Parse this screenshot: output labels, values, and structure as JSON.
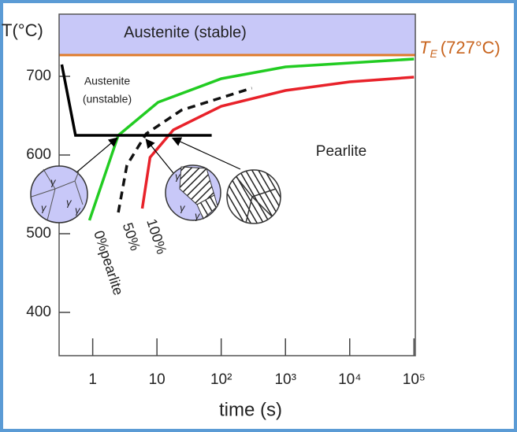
{
  "chart_data": {
    "type": "line",
    "y_label": "T(°C)",
    "x_label": "time (s)",
    "log_x": true,
    "xlim": [
      0.3,
      105000
    ],
    "ylim": [
      345,
      779
    ],
    "xticks": [
      1,
      10,
      {
        "value": 100,
        "label": "10²"
      },
      {
        "value": 1000,
        "label": "10³"
      },
      {
        "value": 10000,
        "label": "10⁴"
      },
      {
        "value": 100000,
        "label": "10⁵"
      }
    ],
    "yticks": [
      400,
      500,
      600,
      700
    ],
    "te_value": 727,
    "te_label": {
      "symbol": "T",
      "subscript": "E",
      "text": "(727°C)"
    },
    "region_stable": "Austenite (stable)",
    "region_unstable": [
      "Austenite",
      "(unstable)"
    ],
    "region_pearlite": "Pearlite",
    "grain_symbol": "γ",
    "series": [
      {
        "name": "0%pearlite",
        "color": "#22cc22",
        "dash": false,
        "x": [
          0.89,
          2.5,
          10.4,
          100,
          1000,
          100000
        ],
        "values": [
          517,
          625,
          667,
          697,
          712,
          722
        ]
      },
      {
        "name": "50%",
        "color": "#111111",
        "dash": true,
        "x": [
          2.5,
          3.4,
          6.8,
          24,
          300
        ],
        "values": [
          527,
          587,
          627,
          657,
          685
        ]
      },
      {
        "name": "100%",
        "color": "#e8222a",
        "dash": false,
        "x": [
          5.9,
          7.8,
          18,
          100,
          1000,
          10000,
          100000
        ],
        "values": [
          532,
          597,
          632,
          662,
          682,
          693,
          699
        ]
      },
      {
        "color": "#000000",
        "dash": false,
        "x": [
          0.33,
          0.54,
          71
        ],
        "values": [
          715,
          625,
          625
        ]
      }
    ]
  }
}
